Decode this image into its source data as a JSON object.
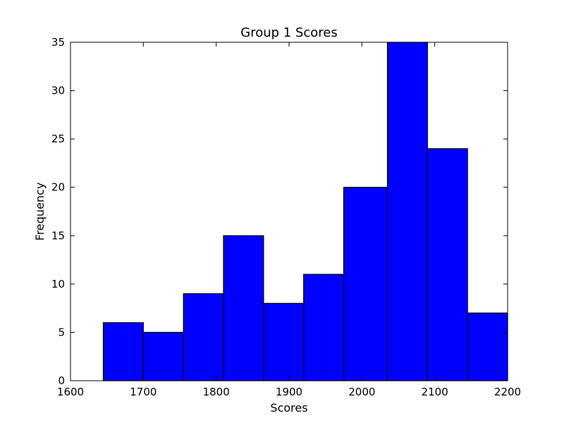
{
  "chart_data": {
    "type": "bar",
    "title": "Group 1 Scores",
    "xlabel": "Scores",
    "ylabel": "Frequency",
    "xlim": [
      1600,
      2200
    ],
    "ylim": [
      0,
      35
    ],
    "xticks": [
      1600,
      1700,
      1800,
      1900,
      2000,
      2100,
      2200
    ],
    "yticks": [
      0,
      5,
      10,
      15,
      20,
      25,
      30,
      35
    ],
    "bins": [
      {
        "start": 1645,
        "end": 1700,
        "count": 6
      },
      {
        "start": 1700,
        "end": 1755,
        "count": 5
      },
      {
        "start": 1755,
        "end": 1810,
        "count": 9
      },
      {
        "start": 1810,
        "end": 1865,
        "count": 15
      },
      {
        "start": 1865,
        "end": 1920,
        "count": 8
      },
      {
        "start": 1920,
        "end": 1975,
        "count": 11
      },
      {
        "start": 1975,
        "end": 2035,
        "count": 20
      },
      {
        "start": 2035,
        "end": 2090,
        "count": 35
      },
      {
        "start": 2090,
        "end": 2145,
        "count": 24
      },
      {
        "start": 2145,
        "end": 2200,
        "count": 7
      }
    ],
    "bar_color": "#0000ff",
    "edge_color": "#000000",
    "grid": false,
    "legend": false
  }
}
